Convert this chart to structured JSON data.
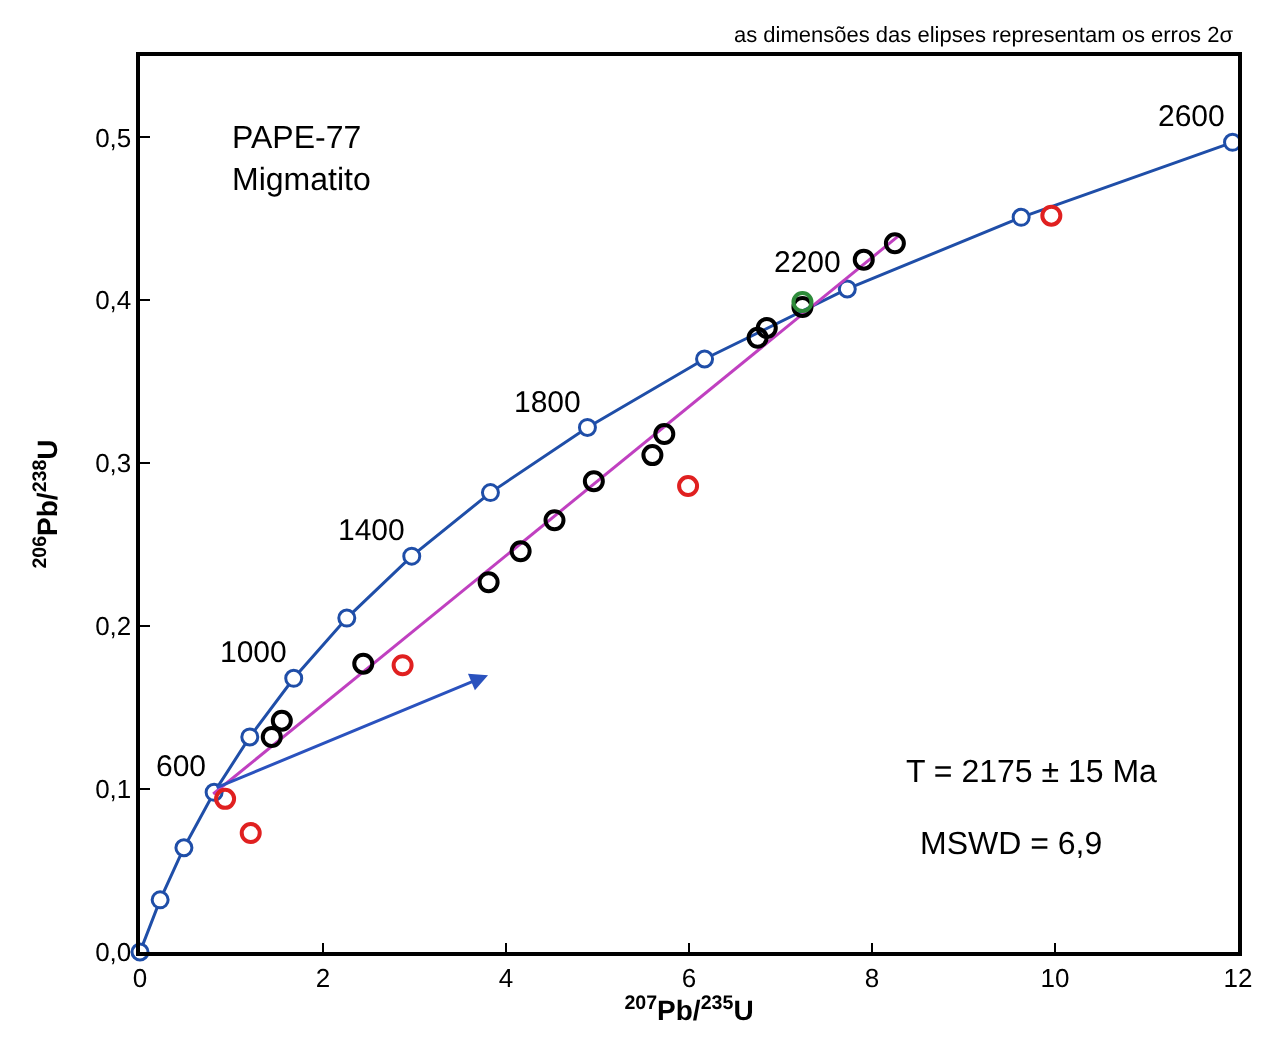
{
  "chart_data": {
    "type": "line",
    "xlabel": "$^{207}$Pb/$^{235}$U",
    "ylabel": "$^{206}$Pb/$^{238}$U",
    "xlim": [
      0,
      12
    ],
    "ylim": [
      0,
      0.55
    ],
    "xticks": [
      0,
      2,
      4,
      6,
      8,
      10,
      12
    ],
    "yticks": [
      {
        "value": 0,
        "label": "0,0"
      },
      {
        "value": 0.1,
        "label": "0,1"
      },
      {
        "value": 0.2,
        "label": "0,2"
      },
      {
        "value": 0.3,
        "label": "0,3"
      },
      {
        "value": 0.4,
        "label": "0,4"
      },
      {
        "value": 0.5,
        "label": "0,5"
      }
    ],
    "series": [
      {
        "color": "#1f4ea8",
        "marker": "circle",
        "x": [
          0,
          0.22,
          0.48,
          0.81,
          1.2,
          1.68,
          2.26,
          2.97,
          3.83,
          4.89,
          6.17,
          7.73,
          9.63,
          11.94
        ],
        "values": [
          0,
          0.032,
          0.064,
          0.098,
          0.132,
          0.168,
          0.205,
          0.243,
          0.282,
          0.322,
          0.364,
          0.407,
          0.451,
          0.497
        ]
      },
      {
        "color": "#c040c0",
        "marker": "none",
        "x": [
          0.8,
          8.3
        ],
        "values": [
          0.097,
          0.44
        ]
      },
      {
        "type": "scatter",
        "color": "#000000",
        "marker": "circle",
        "x": [
          1.44,
          1.55,
          2.44,
          3.81,
          4.16,
          4.53,
          4.96,
          5.6,
          5.73,
          6.75,
          6.85,
          7.24,
          7.91,
          8.25
        ],
        "values": [
          0.132,
          0.142,
          0.177,
          0.227,
          0.246,
          0.265,
          0.289,
          0.305,
          0.318,
          0.377,
          0.383,
          0.396,
          0.425,
          0.435
        ]
      },
      {
        "type": "scatter",
        "color": "#e02020",
        "marker": "circle",
        "x": [
          0.93,
          1.21,
          2.87,
          5.99,
          9.96
        ],
        "values": [
          0.094,
          0.073,
          0.176,
          0.286,
          0.452
        ]
      },
      {
        "type": "scatter",
        "color": "#2e8b3a",
        "marker": "circle",
        "x": [
          7.24
        ],
        "values": [
          0.399
        ]
      }
    ],
    "annotations": [
      {
        "text": "600",
        "x": 0.81,
        "y": 0.098
      },
      {
        "text": "1000",
        "x": 1.68,
        "y": 0.168
      },
      {
        "text": "1400",
        "x": 2.97,
        "y": 0.243
      },
      {
        "text": "1800",
        "x": 4.89,
        "y": 0.322
      },
      {
        "text": "2200",
        "x": 7.73,
        "y": 0.407
      },
      {
        "text": "2600",
        "x": 11.94,
        "y": 0.497
      },
      "PAPE-77\nMigmatito",
      "T = 2175 ± 15 Ma",
      "MSWD = 6,9",
      "as dimensões das elipses representam os erros 2σ"
    ]
  }
}
